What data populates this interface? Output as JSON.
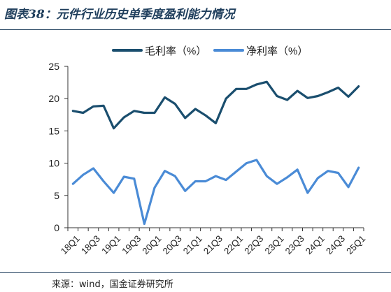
{
  "title": "图表38：元件行业历史单季度盈利能力情况",
  "source": "来源：wind，国金证券研究所",
  "colors": {
    "gross": "#1a4e6e",
    "net": "#4a8bd6",
    "rule": "#1f3e5c",
    "axis": "#333333"
  },
  "chart_data": {
    "type": "line",
    "x": [
      "18Q1",
      "18Q2",
      "18Q3",
      "18Q4",
      "19Q1",
      "19Q2",
      "19Q3",
      "19Q4",
      "20Q1",
      "20Q2",
      "20Q3",
      "20Q4",
      "21Q1",
      "21Q2",
      "21Q3",
      "21Q4",
      "22Q1",
      "22Q2",
      "22Q3",
      "22Q4",
      "23Q1",
      "23Q2",
      "23Q3",
      "23Q4",
      "24Q1",
      "24Q2",
      "24Q3",
      "24Q4",
      "25Q1"
    ],
    "x_tick_labels": [
      "18Q1",
      "18Q3",
      "19Q1",
      "19Q3",
      "20Q1",
      "20Q3",
      "21Q1",
      "21Q3",
      "22Q1",
      "22Q3",
      "23Q1",
      "23Q3",
      "24Q1",
      "24Q3",
      "25Q1"
    ],
    "ylim": [
      0,
      25
    ],
    "yticks": [
      0,
      5,
      10,
      15,
      20,
      25
    ],
    "legend_position": "top",
    "grid": false,
    "series": [
      {
        "name": "毛利率（%）",
        "values": [
          18.1,
          17.8,
          18.8,
          18.9,
          15.4,
          17.1,
          18.1,
          17.8,
          17.8,
          20.2,
          19.2,
          17.0,
          18.4,
          17.4,
          16.2,
          20.0,
          21.5,
          21.5,
          22.2,
          22.6,
          20.4,
          19.8,
          21.2,
          20.1,
          20.4,
          21.0,
          21.7,
          20.3,
          21.9
        ]
      },
      {
        "name": "净利率（%）",
        "values": [
          6.8,
          8.2,
          9.2,
          7.2,
          5.4,
          7.9,
          7.6,
          0.6,
          6.2,
          8.8,
          8.0,
          5.7,
          7.2,
          7.2,
          8.0,
          7.4,
          8.7,
          10.0,
          10.5,
          8.0,
          6.8,
          7.8,
          9.0,
          5.4,
          7.7,
          8.8,
          8.5,
          6.3,
          9.3
        ]
      }
    ]
  }
}
